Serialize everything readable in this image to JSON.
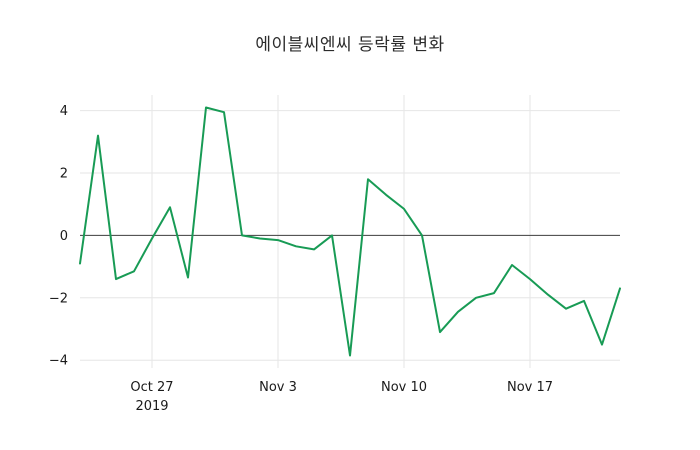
{
  "chart": {
    "title": "에이블씨엔씨 등락률 변화"
  },
  "chart_data": {
    "type": "line",
    "title": "에이블씨엔씨 등락률 변화",
    "series_name": "등락률",
    "x": [
      "2019-10-23",
      "2019-10-24",
      "2019-10-25",
      "2019-10-26",
      "2019-10-27",
      "2019-10-28",
      "2019-10-29",
      "2019-10-30",
      "2019-10-31",
      "2019-11-01",
      "2019-11-02",
      "2019-11-03",
      "2019-11-04",
      "2019-11-05",
      "2019-11-06",
      "2019-11-07",
      "2019-11-08",
      "2019-11-09",
      "2019-11-10",
      "2019-11-11",
      "2019-11-12",
      "2019-11-13",
      "2019-11-14",
      "2019-11-15",
      "2019-11-16",
      "2019-11-17",
      "2019-11-18",
      "2019-11-19",
      "2019-11-20",
      "2019-11-21",
      "2019-11-22"
    ],
    "values": [
      -0.9,
      3.2,
      -1.4,
      -1.15,
      -0.1,
      0.9,
      -1.35,
      4.1,
      3.95,
      0.0,
      -0.1,
      -0.15,
      -0.35,
      -0.45,
      0.0,
      -3.85,
      1.8,
      1.3,
      0.85,
      0.0,
      -3.1,
      -2.45,
      -2.0,
      -1.85,
      -0.95,
      -1.4,
      -1.9,
      -2.35,
      -2.1,
      -3.5,
      -1.7
    ],
    "xlabel": "",
    "ylabel": "",
    "ylim": [
      -4.25,
      4.5
    ],
    "yticks": [
      -4,
      -2,
      0,
      2,
      4
    ],
    "xticks": [
      {
        "index": 4,
        "label": "Oct 27",
        "sublabel": "2019"
      },
      {
        "index": 11,
        "label": "Nov 3"
      },
      {
        "index": 18,
        "label": "Nov 10"
      },
      {
        "index": 25,
        "label": "Nov 17"
      }
    ],
    "grid": true,
    "zero_line": true,
    "legend": "none",
    "line_color": "#189b55",
    "colors": {
      "background": "#ffffff",
      "grid": "#e6e6e6",
      "zero_line": "#3d3d3d",
      "tick_label": "#1a1a1a",
      "title": "#2b2b2b"
    }
  }
}
